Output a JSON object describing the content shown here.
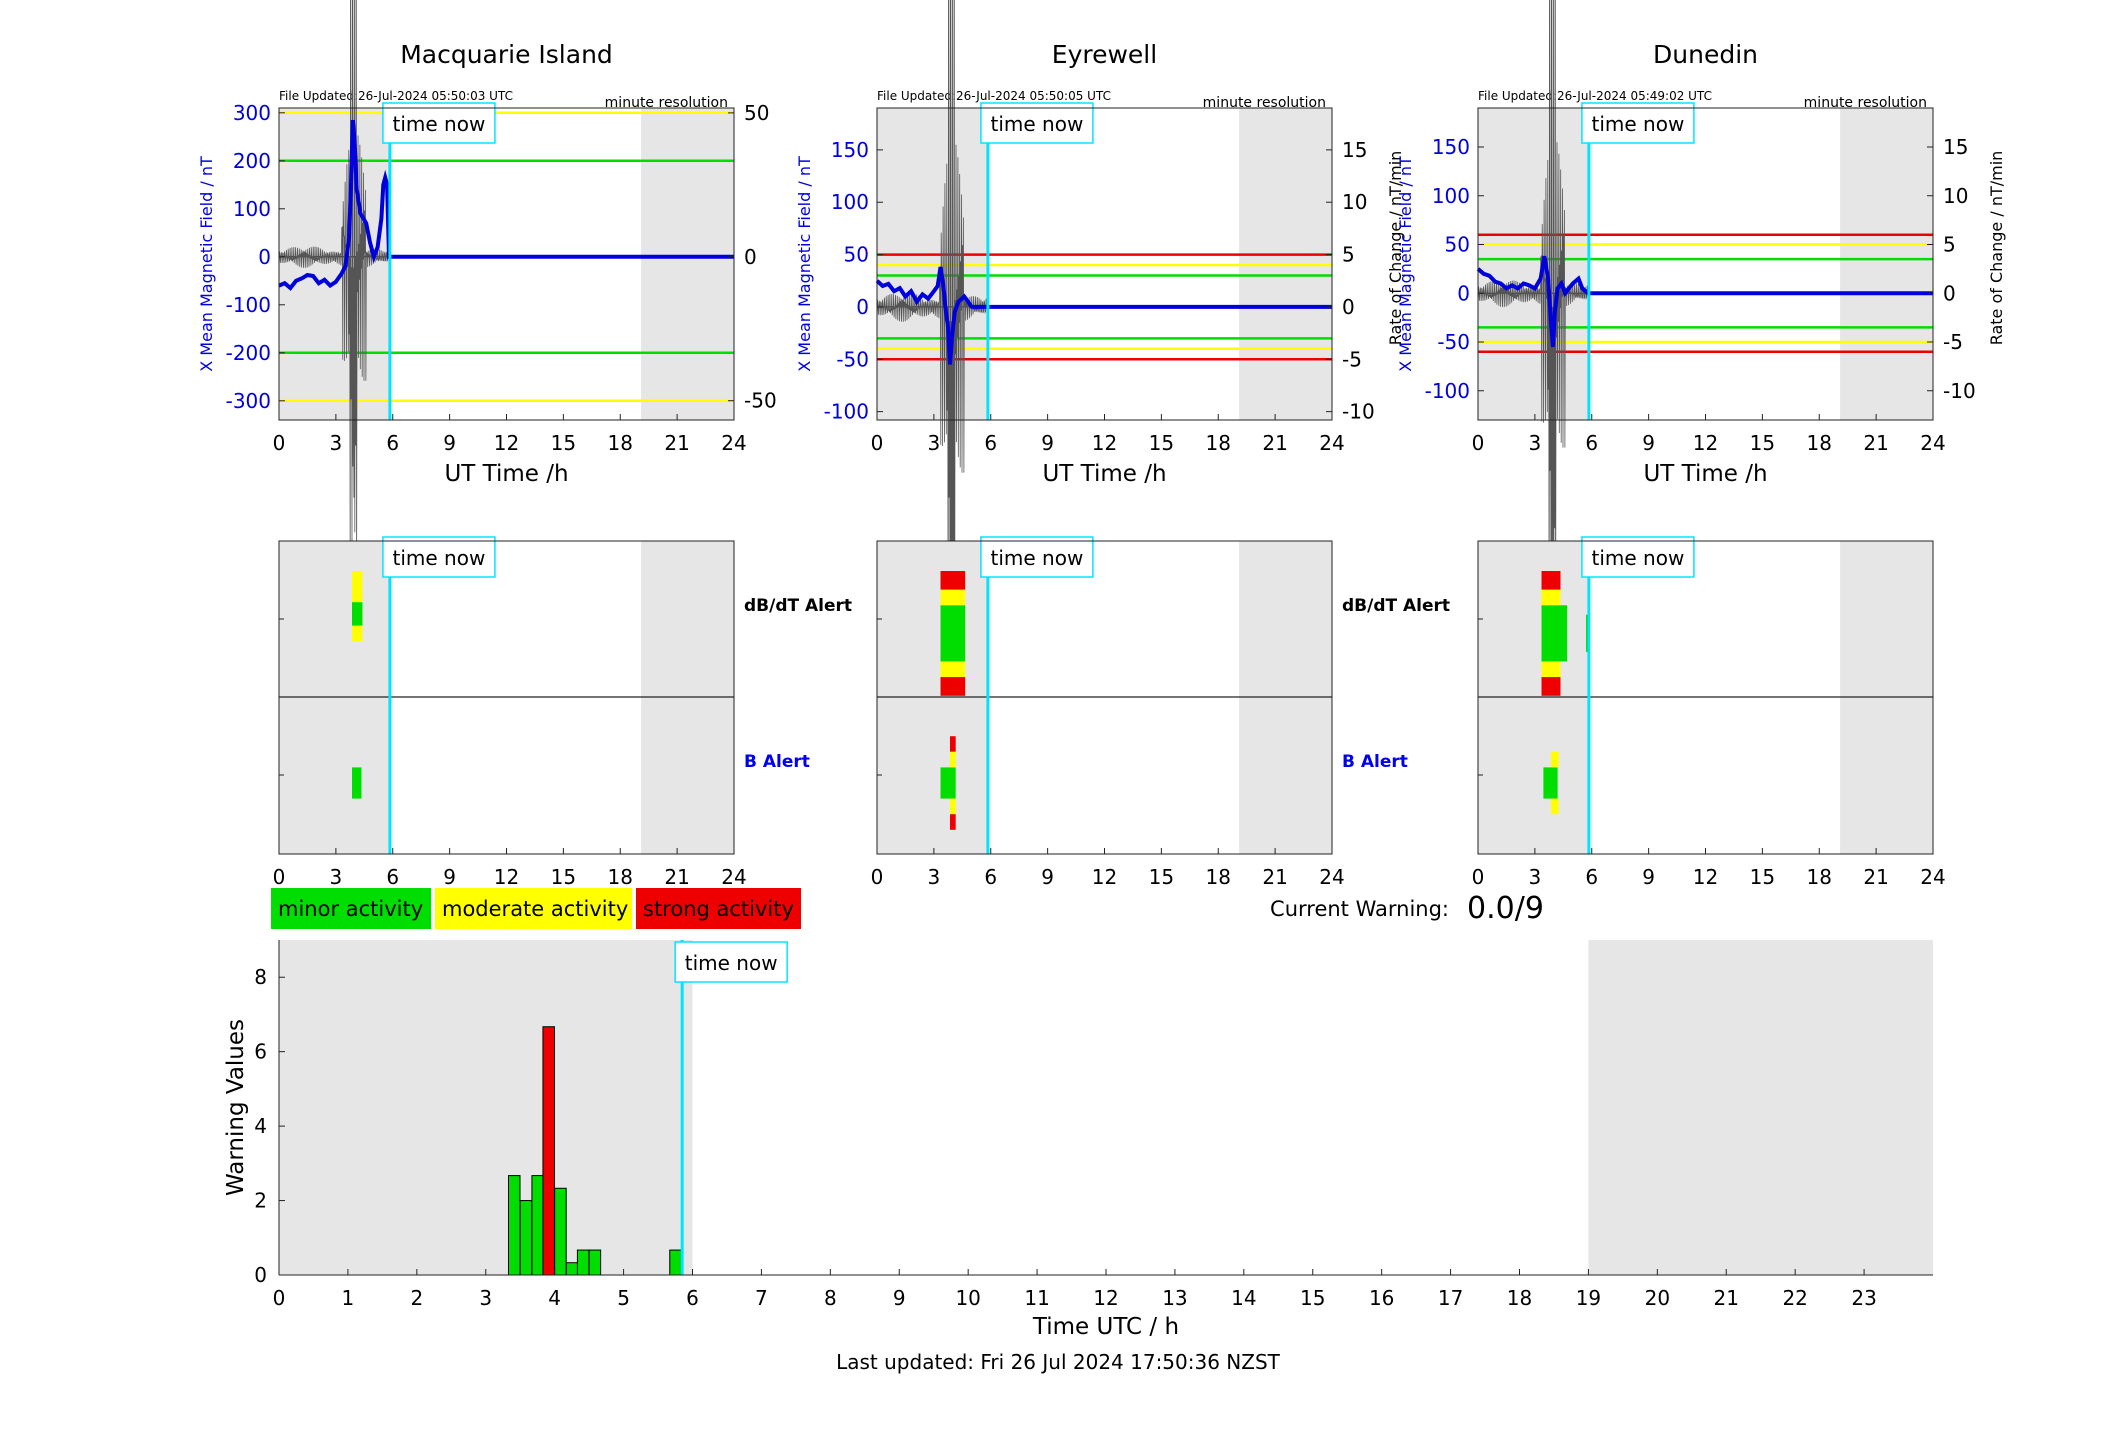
{
  "stations": [
    {
      "name": "Macquarie Island",
      "file_updated": "File Updated:26-Jul-2024 05:50:03 UTC",
      "resolution": "minute resolution",
      "left_axis_label": "X Mean Magnetic Field / nT",
      "right_axis_label": "",
      "left_ylim": [
        -340,
        310
      ],
      "left_ticks": [
        300,
        200,
        100,
        0,
        -100,
        -200,
        -300
      ],
      "right_ylim": [
        -56.7,
        51.7
      ],
      "right_ticks": [
        50,
        0,
        -50
      ],
      "threshold_lines": [
        {
          "value": 300,
          "color": "#ffff00"
        },
        {
          "value": 200,
          "color": "#00dd00"
        },
        {
          "value": -200,
          "color": "#00dd00"
        },
        {
          "value": -300,
          "color": "#ffff00"
        }
      ],
      "x_series": [
        [
          0,
          -60
        ],
        [
          0.3,
          -55
        ],
        [
          0.6,
          -65
        ],
        [
          0.9,
          -50
        ],
        [
          1.2,
          -45
        ],
        [
          1.5,
          -38
        ],
        [
          1.8,
          -40
        ],
        [
          2.1,
          -55
        ],
        [
          2.4,
          -48
        ],
        [
          2.7,
          -60
        ],
        [
          3,
          -52
        ],
        [
          3.3,
          -35
        ],
        [
          3.5,
          -20
        ],
        [
          3.7,
          40
        ],
        [
          3.8,
          150
        ],
        [
          3.9,
          285
        ],
        [
          4.0,
          230
        ],
        [
          4.1,
          140
        ],
        [
          4.3,
          90
        ],
        [
          4.6,
          70
        ],
        [
          4.8,
          30
        ],
        [
          5.0,
          0
        ],
        [
          5.2,
          20
        ],
        [
          5.4,
          80
        ],
        [
          5.5,
          150
        ],
        [
          5.6,
          165
        ],
        [
          5.7,
          150
        ],
        [
          5.8,
          0
        ],
        [
          24,
          0
        ]
      ],
      "alert_dbdt": [
        {
          "t": 3.85,
          "w": 0.55,
          "segments": [
            [
              "#ffff00",
              0,
              0.45
            ],
            [
              "#00dd00",
              0.2,
              0.35
            ]
          ]
        }
      ],
      "alert_b": [
        {
          "t": 3.85,
          "w": 0.5,
          "segments": [
            [
              "#00dd00",
              0.4,
              0.6
            ]
          ]
        }
      ]
    },
    {
      "name": "Eyrewell",
      "file_updated": "File Updated:26-Jul-2024 05:50:05 UTC",
      "resolution": "minute resolution",
      "left_axis_label": "X Mean Magnetic Field / nT",
      "right_axis_label": "Rate of Change / nT/min",
      "left_ylim": [
        -108,
        190
      ],
      "left_ticks": [
        150,
        100,
        50,
        0,
        -50,
        -100
      ],
      "right_ylim": [
        -10.8,
        19
      ],
      "right_ticks": [
        15,
        10,
        5,
        0,
        -5,
        -10
      ],
      "threshold_lines": [
        {
          "value": 50,
          "color": "#ee0000"
        },
        {
          "value": 40,
          "color": "#ffff00"
        },
        {
          "value": 30,
          "color": "#00dd00"
        },
        {
          "value": -30,
          "color": "#00dd00"
        },
        {
          "value": -40,
          "color": "#ffff00"
        },
        {
          "value": -50,
          "color": "#ee0000"
        }
      ],
      "x_series": [
        [
          0,
          25
        ],
        [
          0.3,
          20
        ],
        [
          0.6,
          22
        ],
        [
          0.9,
          15
        ],
        [
          1.2,
          18
        ],
        [
          1.5,
          10
        ],
        [
          1.8,
          15
        ],
        [
          2.1,
          5
        ],
        [
          2.4,
          12
        ],
        [
          2.7,
          8
        ],
        [
          3,
          15
        ],
        [
          3.2,
          20
        ],
        [
          3.35,
          38
        ],
        [
          3.5,
          20
        ],
        [
          3.6,
          0
        ],
        [
          3.75,
          -20
        ],
        [
          3.85,
          -55
        ],
        [
          3.95,
          -30
        ],
        [
          4.1,
          -5
        ],
        [
          4.3,
          5
        ],
        [
          4.6,
          10
        ],
        [
          4.8,
          5
        ],
        [
          5.0,
          0
        ],
        [
          24,
          0
        ]
      ],
      "alert_dbdt": [
        {
          "t": 3.35,
          "w": 1.3,
          "segments": [
            [
              "#ee0000",
              0.0,
              0.12
            ],
            [
              "#ffff00",
              0.12,
              0.68
            ],
            [
              "#ee0000",
              0.68,
              0.8
            ],
            [
              "#00dd00",
              0.22,
              0.58
            ]
          ]
        }
      ],
      "alert_b": [
        {
          "t": 3.35,
          "w": 0.8,
          "segments": [
            [
              "#00dd00",
              0.4,
              0.6
            ]
          ]
        },
        {
          "t": 3.85,
          "w": 0.3,
          "segments": [
            [
              "#ee0000",
              0.2,
              0.3
            ],
            [
              "#ffff00",
              0.3,
              0.4
            ],
            [
              "#ffff00",
              0.6,
              0.7
            ],
            [
              "#ee0000",
              0.7,
              0.8
            ]
          ]
        }
      ]
    },
    {
      "name": "Dunedin",
      "file_updated": "File Updated:26-Jul-2024 05:49:02 UTC",
      "resolution": "minute resolution",
      "left_axis_label": "X Mean Magnetic Field / nT",
      "right_axis_label": "Rate of Change / nT/min",
      "left_ylim": [
        -130,
        190
      ],
      "left_ticks": [
        150,
        100,
        50,
        0,
        -50,
        -100
      ],
      "right_ylim": [
        -13,
        19
      ],
      "right_ticks": [
        15,
        10,
        5,
        0,
        -5,
        -10
      ],
      "threshold_lines": [
        {
          "value": 60,
          "color": "#ee0000"
        },
        {
          "value": 50,
          "color": "#ffff00"
        },
        {
          "value": 35,
          "color": "#00dd00"
        },
        {
          "value": -35,
          "color": "#00dd00"
        },
        {
          "value": -50,
          "color": "#ffff00"
        },
        {
          "value": -60,
          "color": "#ee0000"
        }
      ],
      "x_series": [
        [
          0,
          25
        ],
        [
          0.3,
          20
        ],
        [
          0.6,
          18
        ],
        [
          0.9,
          12
        ],
        [
          1.2,
          10
        ],
        [
          1.5,
          5
        ],
        [
          1.8,
          8
        ],
        [
          2.1,
          5
        ],
        [
          2.4,
          10
        ],
        [
          2.7,
          8
        ],
        [
          3,
          5
        ],
        [
          3.3,
          15
        ],
        [
          3.5,
          38
        ],
        [
          3.7,
          15
        ],
        [
          3.85,
          -30
        ],
        [
          3.95,
          -55
        ],
        [
          4.05,
          -20
        ],
        [
          4.2,
          5
        ],
        [
          4.4,
          10
        ],
        [
          4.6,
          0
        ],
        [
          4.8,
          5
        ],
        [
          5.0,
          10
        ],
        [
          5.3,
          15
        ],
        [
          5.5,
          5
        ],
        [
          5.8,
          0
        ],
        [
          24,
          0
        ]
      ],
      "alert_dbdt": [
        {
          "t": 3.35,
          "w": 1.0,
          "segments": [
            [
              "#ee0000",
              0.0,
              0.12
            ],
            [
              "#ffff00",
              0.12,
              0.68
            ],
            [
              "#ee0000",
              0.68,
              0.8
            ],
            [
              "#00dd00",
              0.22,
              0.58
            ]
          ]
        },
        {
          "t": 4.35,
          "w": 0.35,
          "segments": [
            [
              "#00dd00",
              0.22,
              0.58
            ]
          ]
        },
        {
          "t": 5.7,
          "w": 0.2,
          "segments": [
            [
              "#00dd00",
              0.28,
              0.52
            ]
          ]
        }
      ],
      "alert_b": [
        {
          "t": 3.45,
          "w": 0.75,
          "segments": [
            [
              "#00dd00",
              0.4,
              0.6
            ]
          ]
        },
        {
          "t": 3.85,
          "w": 0.4,
          "segments": [
            [
              "#ffff00",
              0.3,
              0.4
            ],
            [
              "#ffff00",
              0.6,
              0.7
            ]
          ]
        }
      ]
    }
  ],
  "top_xlabel": "UT Time /h",
  "top_xticks": [
    0,
    3,
    6,
    9,
    12,
    15,
    18,
    21,
    24
  ],
  "time_now_label": "time now",
  "time_now_hours": 5.85,
  "night_shading_top": [
    [
      0,
      5.85
    ],
    [
      19.1,
      24
    ]
  ],
  "alert_labels": {
    "dbdt": "dB/dT Alert",
    "b": "B Alert"
  },
  "legend": [
    {
      "label": "minor activity",
      "color": "#00dd00"
    },
    {
      "label": "moderate activity",
      "color": "#ffff00"
    },
    {
      "label": "strong activity",
      "color": "#ee0000"
    }
  ],
  "current_warning": {
    "label": "Current Warning:",
    "value": "0.0/9"
  },
  "chart_data": {
    "type": "bar",
    "xlabel": "Time UTC / h",
    "ylabel": "Warning Values",
    "xlim": [
      0,
      24
    ],
    "ylim": [
      0,
      9
    ],
    "xticks": [
      0,
      1,
      2,
      3,
      4,
      5,
      6,
      7,
      8,
      9,
      10,
      11,
      12,
      13,
      14,
      15,
      16,
      17,
      18,
      19,
      20,
      21,
      22,
      23
    ],
    "yticks": [
      0,
      2,
      4,
      6,
      8
    ],
    "shading": [
      [
        0,
        6
      ],
      [
        19,
        24
      ]
    ],
    "bars": [
      {
        "x": 3.33,
        "value": 2.67,
        "color": "#00dd00"
      },
      {
        "x": 3.5,
        "value": 2.0,
        "color": "#00dd00"
      },
      {
        "x": 3.67,
        "value": 2.67,
        "color": "#00dd00"
      },
      {
        "x": 3.83,
        "value": 6.67,
        "color": "#ee0000"
      },
      {
        "x": 4.0,
        "value": 2.33,
        "color": "#00dd00"
      },
      {
        "x": 4.17,
        "value": 0.33,
        "color": "#00dd00"
      },
      {
        "x": 4.33,
        "value": 0.67,
        "color": "#00dd00"
      },
      {
        "x": 4.5,
        "value": 0.67,
        "color": "#00dd00"
      },
      {
        "x": 5.67,
        "value": 0.67,
        "color": "#00dd00"
      }
    ],
    "bar_width_hours": 0.167
  },
  "footer": "Last updated: Fri 26 Jul 2024 17:50:36 NZST"
}
